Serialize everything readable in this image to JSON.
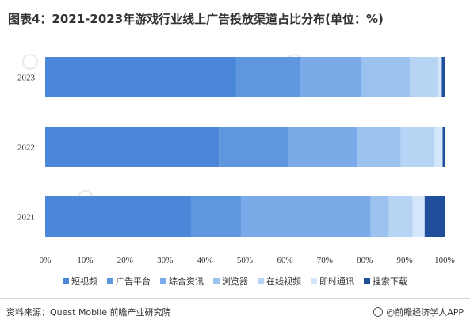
{
  "title": "图表4：2021-2023年游戏行业线上广告投放渠道占比分布(单位：%)",
  "source": "资料来源：Quest Mobile 前瞻产业研究院",
  "brand": "@前瞻经济学人APP",
  "colors": {
    "短视频": "#4a87d9",
    "广告平台": "#5e97e0",
    "综合资讯": "#7aaae8",
    "浏览器": "#9cc2f0",
    "在线视频": "#b7d4f5",
    "即时通讯": "#d4e6fa",
    "搜索下载": "#1f4f9c"
  },
  "chart_data": {
    "type": "bar",
    "orientation": "horizontal",
    "stacked": true,
    "categories": [
      "2023",
      "2022",
      "2021"
    ],
    "series": [
      {
        "name": "短视频",
        "values": [
          47.8,
          43.5,
          36.5
        ]
      },
      {
        "name": "广告平台",
        "values": [
          16.0,
          17.5,
          12.5
        ]
      },
      {
        "name": "综合资讯",
        "values": [
          15.5,
          17.0,
          32.5
        ]
      },
      {
        "name": "浏览器",
        "values": [
          12.0,
          11.0,
          4.5
        ]
      },
      {
        "name": "在线视频",
        "values": [
          7.0,
          8.5,
          6.0
        ]
      },
      {
        "name": "即时通讯",
        "values": [
          1.0,
          2.0,
          3.0
        ]
      },
      {
        "name": "搜索下载",
        "values": [
          0.7,
          0.5,
          5.0
        ]
      }
    ],
    "xlim": [
      0,
      100
    ],
    "xticks": [
      "0%",
      "10%",
      "20%",
      "30%",
      "40%",
      "50%",
      "60%",
      "70%",
      "80%",
      "90%",
      "100%"
    ],
    "legend_position": "bottom",
    "grid": false
  }
}
